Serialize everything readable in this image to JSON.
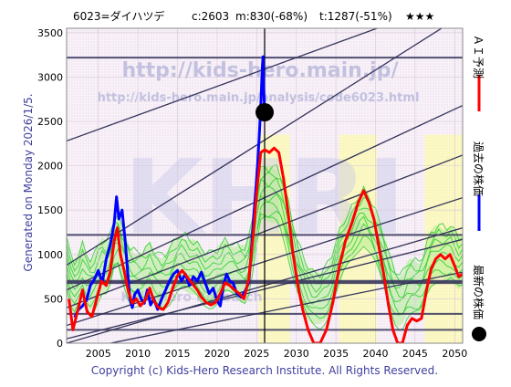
{
  "header": {
    "ticker": "6023=ダイハツデ",
    "close": "c:2603",
    "min": "m:830(-68%)",
    "target": "t:1287(-51%)",
    "stars": "★★★"
  },
  "side_label": "Generated on Monday 2026/1/5.",
  "watermark": {
    "url_large": "http://kids-hero.main.jp/",
    "url_small": "http://kids-hero.main.jp/analysis/code6023.html",
    "logo": "KHRI",
    "logo_faint": "Kids-Hero Research"
  },
  "legend": [
    {
      "label": "ＡＩ予測",
      "color": "#ff0000"
    },
    {
      "label": "過去の株価",
      "color": "#0000ff"
    },
    {
      "label": "最新の株価",
      "color": "#000000"
    }
  ],
  "footer": "Copyright (c) Kids-Hero Research Institute. All Rights Reserved.",
  "colors": {
    "past_price": "#0000ff",
    "ai_forecast": "#ff0000",
    "trend_lines": "#33335a",
    "band_green": "#33cc33",
    "band_fill": "#aaee88",
    "zone_yellow": "#ffff99",
    "background": "#f6eef6",
    "footer_text": "#4040a0",
    "side_text": "#4040a0"
  },
  "chart_data": {
    "type": "line",
    "xlim": [
      2001,
      2051
    ],
    "ylim": [
      0,
      3550
    ],
    "x_ticks": [
      2005,
      2010,
      2015,
      2020,
      2025,
      2030,
      2035,
      2040,
      2045,
      2050
    ],
    "y_ticks": [
      0,
      500,
      1000,
      1500,
      2000,
      2500,
      3000,
      3500
    ],
    "latest_point": {
      "x": 2026.0,
      "y": 2603
    },
    "current_date_line_x": 2026.0,
    "horizontal_levels": [
      3220,
      1220,
      700,
      680,
      330,
      150
    ],
    "trend_lines": [
      {
        "from": [
          2001,
          2280
        ],
        "to": [
          2051,
          3900
        ]
      },
      {
        "from": [
          2001,
          880
        ],
        "to": [
          2051,
          3700
        ]
      },
      {
        "from": [
          2001,
          600
        ],
        "to": [
          2051,
          2680
        ]
      },
      {
        "from": [
          2001,
          400
        ],
        "to": [
          2051,
          2120
        ]
      },
      {
        "from": [
          2001,
          200
        ],
        "to": [
          2051,
          1640
        ]
      },
      {
        "from": [
          2001,
          0
        ],
        "to": [
          2051,
          1300
        ]
      },
      {
        "from": [
          2001,
          50
        ],
        "to": [
          2051,
          1170
        ]
      },
      {
        "from": [
          2001,
          -100
        ],
        "to": [
          2051,
          800
        ]
      }
    ],
    "series": [
      {
        "name": "過去の株価",
        "points": [
          [
            2002.0,
            290
          ],
          [
            2002.5,
            380
          ],
          [
            2003.0,
            420
          ],
          [
            2003.5,
            480
          ],
          [
            2004.0,
            650
          ],
          [
            2004.5,
            720
          ],
          [
            2005.0,
            820
          ],
          [
            2005.5,
            680
          ],
          [
            2006.0,
            950
          ],
          [
            2006.5,
            1100
          ],
          [
            2007.0,
            1350
          ],
          [
            2007.3,
            1650
          ],
          [
            2007.6,
            1400
          ],
          [
            2008.0,
            1500
          ],
          [
            2008.4,
            1150
          ],
          [
            2008.8,
            700
          ],
          [
            2009.0,
            500
          ],
          [
            2009.3,
            400
          ],
          [
            2009.6,
            550
          ],
          [
            2010.0,
            600
          ],
          [
            2010.4,
            500
          ],
          [
            2010.8,
            450
          ],
          [
            2011.2,
            600
          ],
          [
            2011.6,
            430
          ],
          [
            2012.0,
            500
          ],
          [
            2012.5,
            380
          ],
          [
            2013.0,
            500
          ],
          [
            2013.5,
            600
          ],
          [
            2014.0,
            700
          ],
          [
            2014.5,
            780
          ],
          [
            2015.0,
            820
          ],
          [
            2015.5,
            700
          ],
          [
            2016.0,
            780
          ],
          [
            2016.5,
            650
          ],
          [
            2017.0,
            750
          ],
          [
            2017.5,
            700
          ],
          [
            2018.0,
            800
          ],
          [
            2018.5,
            680
          ],
          [
            2019.0,
            560
          ],
          [
            2019.5,
            620
          ],
          [
            2020.0,
            480
          ],
          [
            2020.4,
            420
          ],
          [
            2020.8,
            650
          ],
          [
            2021.2,
            780
          ],
          [
            2021.6,
            700
          ],
          [
            2022.0,
            680
          ],
          [
            2022.5,
            560
          ],
          [
            2023.0,
            520
          ],
          [
            2023.5,
            580
          ],
          [
            2024.0,
            680
          ],
          [
            2024.3,
            1000
          ],
          [
            2024.6,
            1400
          ],
          [
            2024.9,
            1750
          ],
          [
            2025.1,
            2000
          ],
          [
            2025.3,
            2300
          ],
          [
            2025.5,
            2650
          ],
          [
            2025.7,
            3100
          ],
          [
            2025.8,
            3230
          ],
          [
            2025.9,
            2850
          ],
          [
            2026.0,
            2603
          ]
        ]
      },
      {
        "name": "ＡＩ予測",
        "points": [
          [
            2001.3,
            500
          ],
          [
            2001.8,
            150
          ],
          [
            2002.5,
            400
          ],
          [
            2003.0,
            600
          ],
          [
            2003.6,
            350
          ],
          [
            2004.2,
            300
          ],
          [
            2004.8,
            500
          ],
          [
            2005.4,
            700
          ],
          [
            2006.0,
            650
          ],
          [
            2006.5,
            800
          ],
          [
            2007.0,
            1150
          ],
          [
            2007.4,
            1300
          ],
          [
            2007.8,
            1000
          ],
          [
            2008.3,
            800
          ],
          [
            2008.8,
            580
          ],
          [
            2009.3,
            450
          ],
          [
            2009.8,
            500
          ],
          [
            2010.3,
            420
          ],
          [
            2010.9,
            480
          ],
          [
            2011.5,
            620
          ],
          [
            2012.0,
            480
          ],
          [
            2012.6,
            400
          ],
          [
            2013.2,
            380
          ],
          [
            2013.8,
            460
          ],
          [
            2014.4,
            620
          ],
          [
            2015.0,
            760
          ],
          [
            2015.6,
            820
          ],
          [
            2016.2,
            750
          ],
          [
            2016.8,
            680
          ],
          [
            2017.5,
            600
          ],
          [
            2018.0,
            520
          ],
          [
            2018.6,
            460
          ],
          [
            2019.2,
            430
          ],
          [
            2019.8,
            460
          ],
          [
            2020.4,
            560
          ],
          [
            2021.0,
            680
          ],
          [
            2021.6,
            650
          ],
          [
            2022.2,
            600
          ],
          [
            2022.8,
            560
          ],
          [
            2023.4,
            500
          ],
          [
            2024.0,
            720
          ],
          [
            2024.6,
            1250
          ],
          [
            2025.0,
            1700
          ],
          [
            2025.5,
            2150
          ],
          [
            2026.0,
            2180
          ],
          [
            2026.6,
            2150
          ],
          [
            2027.2,
            2200
          ],
          [
            2027.8,
            2150
          ],
          [
            2028.4,
            1850
          ],
          [
            2029.0,
            1450
          ],
          [
            2029.6,
            1000
          ],
          [
            2030.2,
            650
          ],
          [
            2030.8,
            380
          ],
          [
            2031.5,
            150
          ],
          [
            2032.2,
            0
          ],
          [
            2033.0,
            0
          ],
          [
            2033.8,
            150
          ],
          [
            2034.6,
            450
          ],
          [
            2035.4,
            850
          ],
          [
            2036.2,
            1150
          ],
          [
            2037.0,
            1350
          ],
          [
            2037.8,
            1580
          ],
          [
            2038.5,
            1720
          ],
          [
            2039.2,
            1580
          ],
          [
            2039.8,
            1400
          ],
          [
            2040.4,
            1100
          ],
          [
            2041.0,
            800
          ],
          [
            2041.6,
            450
          ],
          [
            2042.2,
            150
          ],
          [
            2042.8,
            0
          ],
          [
            2043.4,
            0
          ],
          [
            2044.0,
            200
          ],
          [
            2044.6,
            280
          ],
          [
            2045.2,
            250
          ],
          [
            2045.8,
            280
          ],
          [
            2046.4,
            580
          ],
          [
            2047.0,
            830
          ],
          [
            2047.6,
            950
          ],
          [
            2048.2,
            1000
          ],
          [
            2048.8,
            950
          ],
          [
            2049.4,
            1000
          ],
          [
            2050.0,
            870
          ],
          [
            2050.5,
            750
          ],
          [
            2051.0,
            780
          ]
        ]
      }
    ]
  }
}
